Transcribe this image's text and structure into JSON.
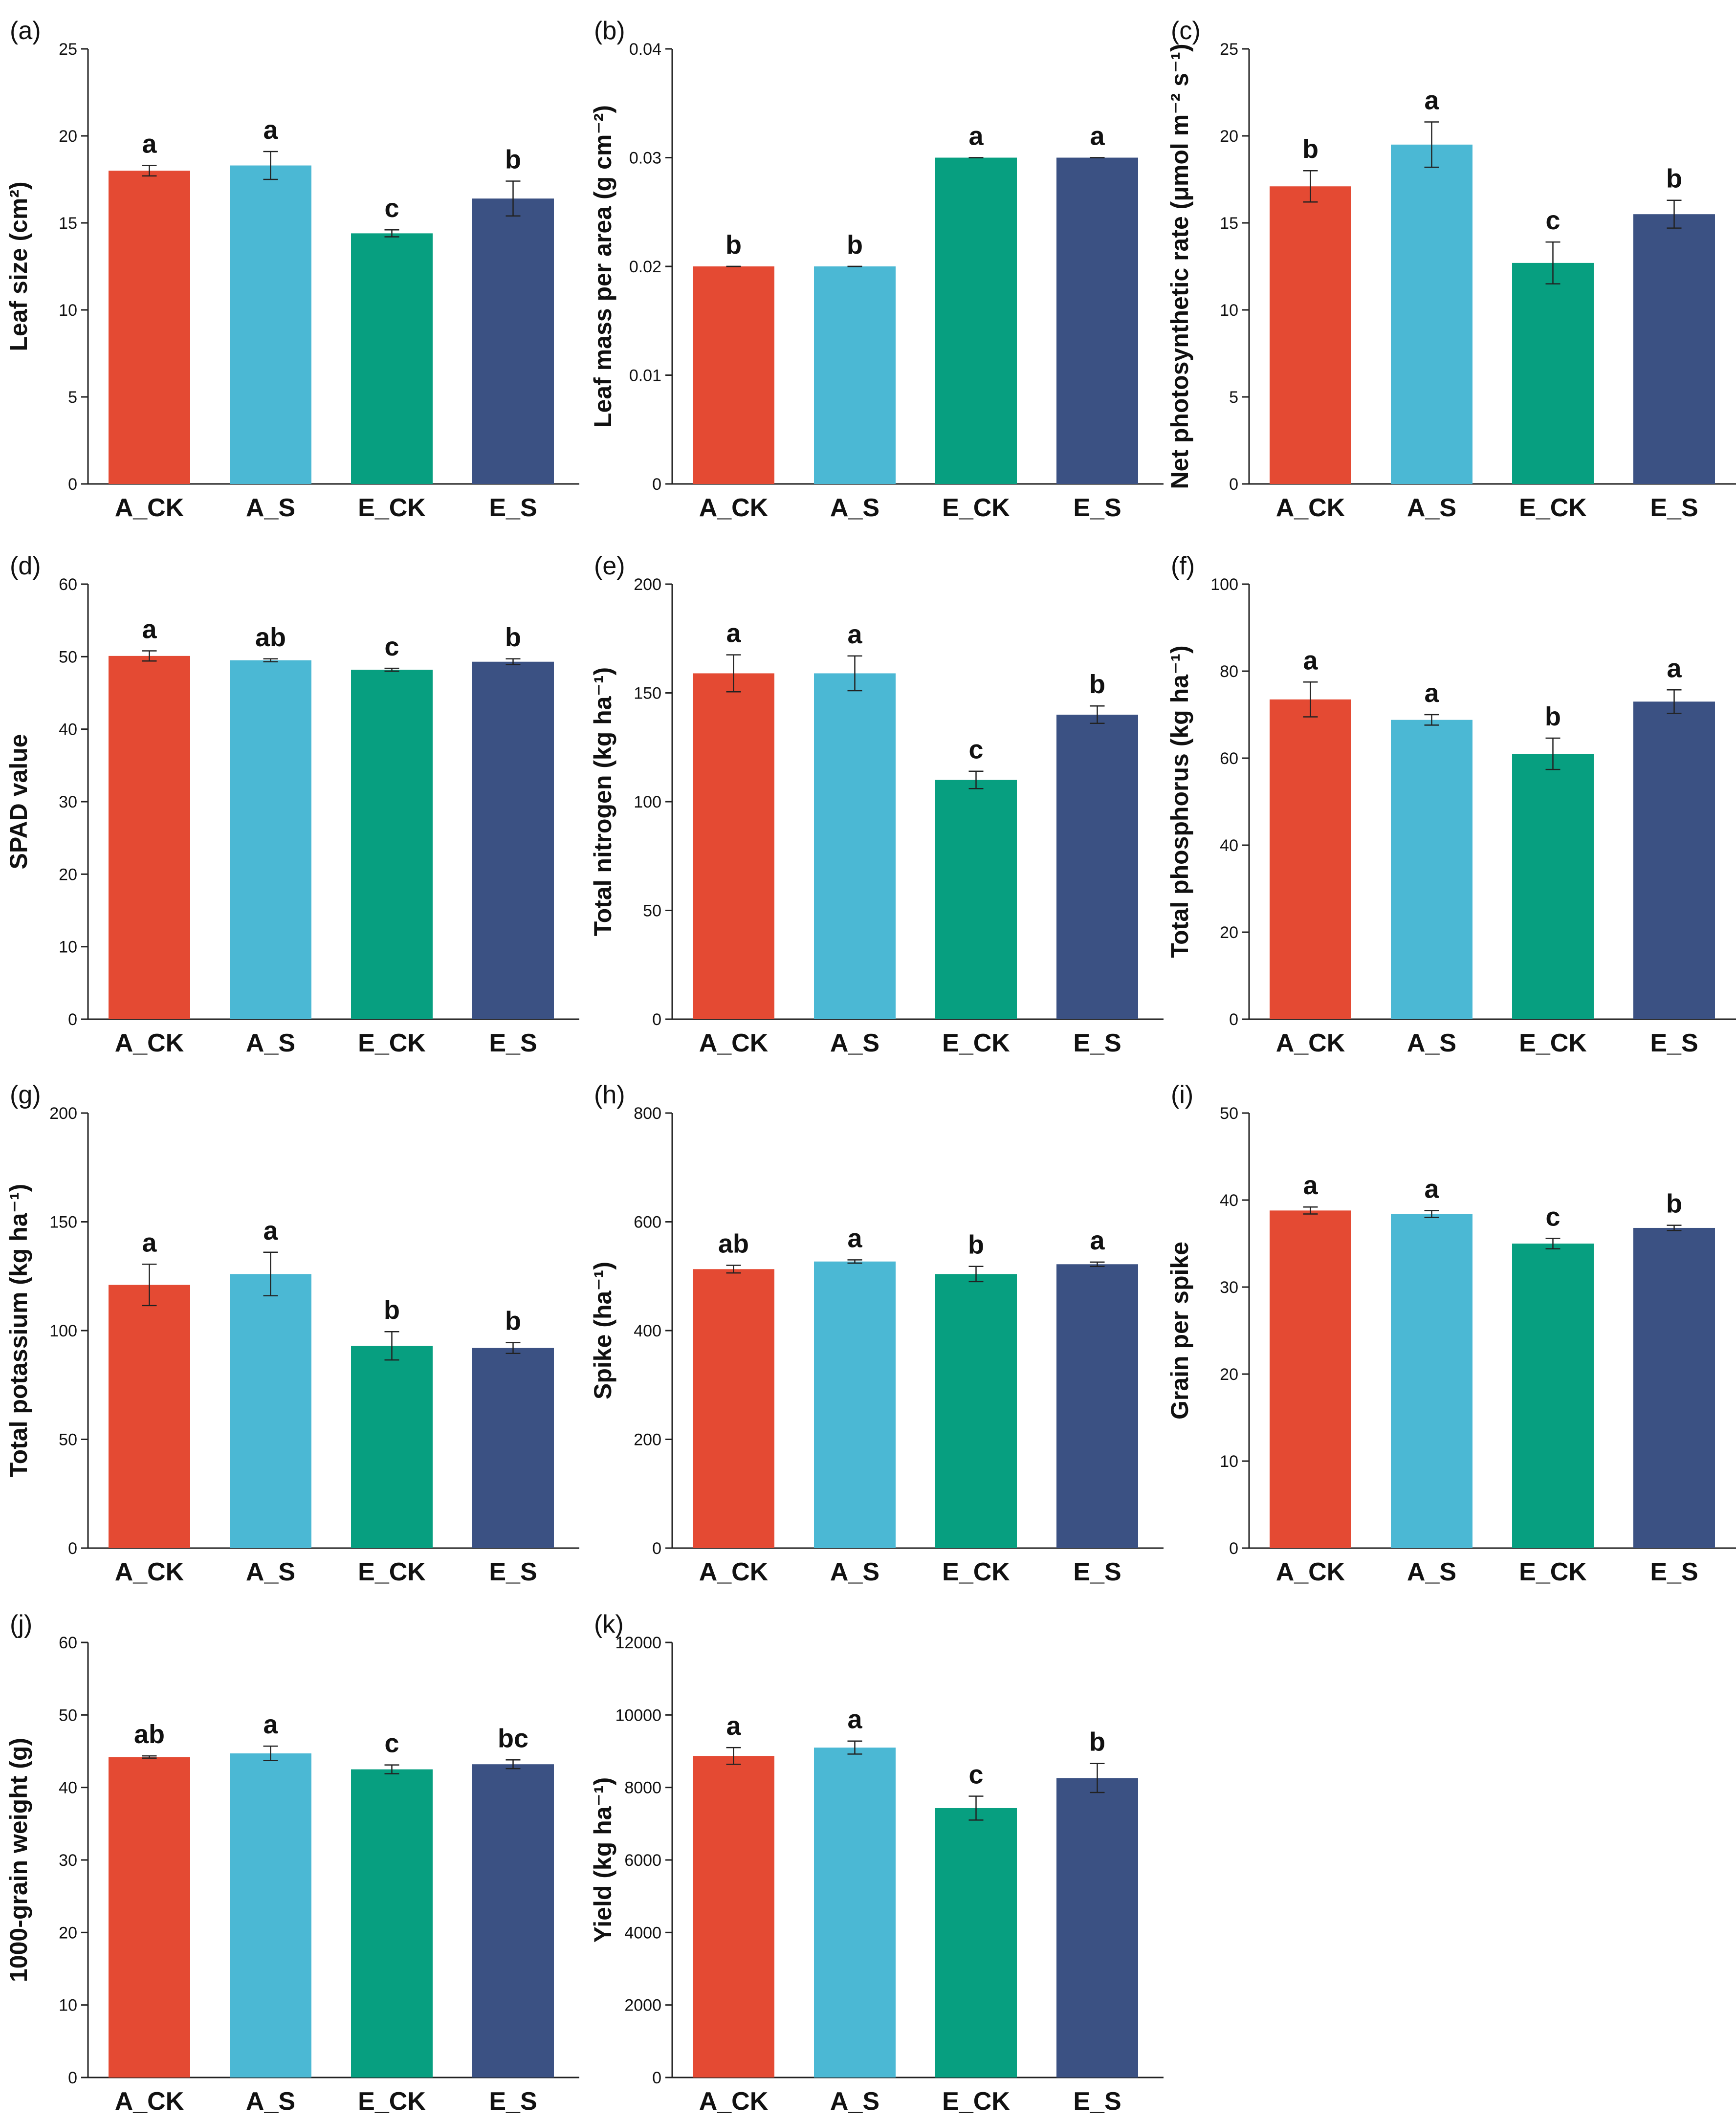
{
  "figure": {
    "colors": [
      "#e44a33",
      "#4bb8d4",
      "#079f80",
      "#3b5183"
    ]
  },
  "chart_data": [
    {
      "type": "bar",
      "panel": "(a)",
      "ylabel": "Leaf size (cm²)",
      "ylim": [
        0,
        25
      ],
      "yticks": [
        0,
        5,
        10,
        15,
        20,
        25
      ],
      "categories": [
        "A_CK",
        "A_S",
        "E_CK",
        "E_S"
      ],
      "values": [
        18.0,
        18.3,
        14.4,
        16.4
      ],
      "errors": [
        0.3,
        0.8,
        0.2,
        1.0
      ],
      "letters": [
        "a",
        "a",
        "c",
        "b"
      ]
    },
    {
      "type": "bar",
      "panel": "(b)",
      "ylabel": "Leaf mass per area (g cm⁻²)",
      "ylim": [
        0,
        0.04
      ],
      "yticks": [
        0,
        0.01,
        0.02,
        0.03,
        0.04
      ],
      "categories": [
        "A_CK",
        "A_S",
        "E_CK",
        "E_S"
      ],
      "values": [
        0.02,
        0.02,
        0.03,
        0.03
      ],
      "errors": [
        0,
        0,
        0,
        0
      ],
      "letters": [
        "b",
        "b",
        "a",
        "a"
      ]
    },
    {
      "type": "bar",
      "panel": "(c)",
      "ylabel": "Net photosynthetic rate (μmol m⁻² s⁻¹)",
      "ylim": [
        0,
        25
      ],
      "yticks": [
        0,
        5,
        10,
        15,
        20,
        25
      ],
      "categories": [
        "A_CK",
        "A_S",
        "E_CK",
        "E_S"
      ],
      "values": [
        17.1,
        19.5,
        12.7,
        15.5
      ],
      "errors": [
        0.9,
        1.3,
        1.2,
        0.8
      ],
      "letters": [
        "b",
        "a",
        "c",
        "b"
      ]
    },
    {
      "type": "bar",
      "panel": "(d)",
      "ylabel": "SPAD value",
      "ylim": [
        0,
        60
      ],
      "yticks": [
        0,
        10,
        20,
        30,
        40,
        50,
        60
      ],
      "categories": [
        "A_CK",
        "A_S",
        "E_CK",
        "E_S"
      ],
      "values": [
        50.1,
        49.5,
        48.2,
        49.3
      ],
      "errors": [
        0.7,
        0.2,
        0.2,
        0.4
      ],
      "letters": [
        "a",
        "ab",
        "c",
        "b"
      ]
    },
    {
      "type": "bar",
      "panel": "(e)",
      "ylabel": "Total nitrogen (kg ha⁻¹)",
      "ylim": [
        0,
        200
      ],
      "yticks": [
        0,
        50,
        100,
        150,
        200
      ],
      "categories": [
        "A_CK",
        "A_S",
        "E_CK",
        "E_S"
      ],
      "values": [
        159,
        159,
        110,
        140
      ],
      "errors": [
        8.5,
        8,
        4,
        4
      ],
      "letters": [
        "a",
        "a",
        "c",
        "b"
      ]
    },
    {
      "type": "bar",
      "panel": "(f)",
      "ylabel": "Total phosphorus (kg ha⁻¹)",
      "ylim": [
        0,
        100
      ],
      "yticks": [
        0,
        20,
        40,
        60,
        80,
        100
      ],
      "categories": [
        "A_CK",
        "A_S",
        "E_CK",
        "E_S"
      ],
      "values": [
        73.5,
        68.8,
        61.0,
        73.0
      ],
      "errors": [
        4,
        1.2,
        3.6,
        2.7
      ],
      "letters": [
        "a",
        "a",
        "b",
        "a"
      ]
    },
    {
      "type": "bar",
      "panel": "(g)",
      "ylabel": "Total potassium (kg ha⁻¹)",
      "ylim": [
        0,
        200
      ],
      "yticks": [
        0,
        50,
        100,
        150,
        200
      ],
      "categories": [
        "A_CK",
        "A_S",
        "E_CK",
        "E_S"
      ],
      "values": [
        121,
        126,
        93,
        92
      ],
      "errors": [
        9.5,
        10,
        6.5,
        2.5
      ],
      "letters": [
        "a",
        "a",
        "b",
        "b"
      ]
    },
    {
      "type": "bar",
      "panel": "(h)",
      "ylabel": "Spike (ha⁻¹)",
      "ylim": [
        0,
        800
      ],
      "yticks": [
        0,
        200,
        400,
        600,
        800
      ],
      "categories": [
        "A_CK",
        "A_S",
        "E_CK",
        "E_S"
      ],
      "values": [
        513,
        527,
        504,
        522
      ],
      "errors": [
        7,
        3,
        14,
        4
      ],
      "letters": [
        "ab",
        "a",
        "b",
        "a"
      ]
    },
    {
      "type": "bar",
      "panel": "(i)",
      "ylabel": "Grain per spike",
      "ylim": [
        0,
        50
      ],
      "yticks": [
        0,
        10,
        20,
        30,
        40,
        50
      ],
      "categories": [
        "A_CK",
        "A_S",
        "E_CK",
        "E_S"
      ],
      "values": [
        38.8,
        38.4,
        35.0,
        36.8
      ],
      "errors": [
        0.4,
        0.4,
        0.6,
        0.3
      ],
      "letters": [
        "a",
        "a",
        "c",
        "b"
      ]
    },
    {
      "type": "bar",
      "panel": "(j)",
      "ylabel": "1000-grain weight (g)",
      "ylim": [
        0,
        60
      ],
      "yticks": [
        0,
        10,
        20,
        30,
        40,
        50,
        60
      ],
      "categories": [
        "A_CK",
        "A_S",
        "E_CK",
        "E_S"
      ],
      "values": [
        44.2,
        44.7,
        42.5,
        43.2
      ],
      "errors": [
        0.15,
        1.0,
        0.6,
        0.6
      ],
      "letters": [
        "ab",
        "a",
        "c",
        "bc"
      ]
    },
    {
      "type": "bar",
      "panel": "(k)",
      "ylabel": "Yield (kg ha⁻¹)",
      "ylim": [
        0,
        12000
      ],
      "yticks": [
        0,
        2000,
        4000,
        6000,
        8000,
        10000,
        12000
      ],
      "categories": [
        "A_CK",
        "A_S",
        "E_CK",
        "E_S"
      ],
      "values": [
        8870,
        9100,
        7430,
        8260
      ],
      "errors": [
        230,
        180,
        330,
        400
      ],
      "letters": [
        "a",
        "a",
        "c",
        "b"
      ]
    }
  ]
}
